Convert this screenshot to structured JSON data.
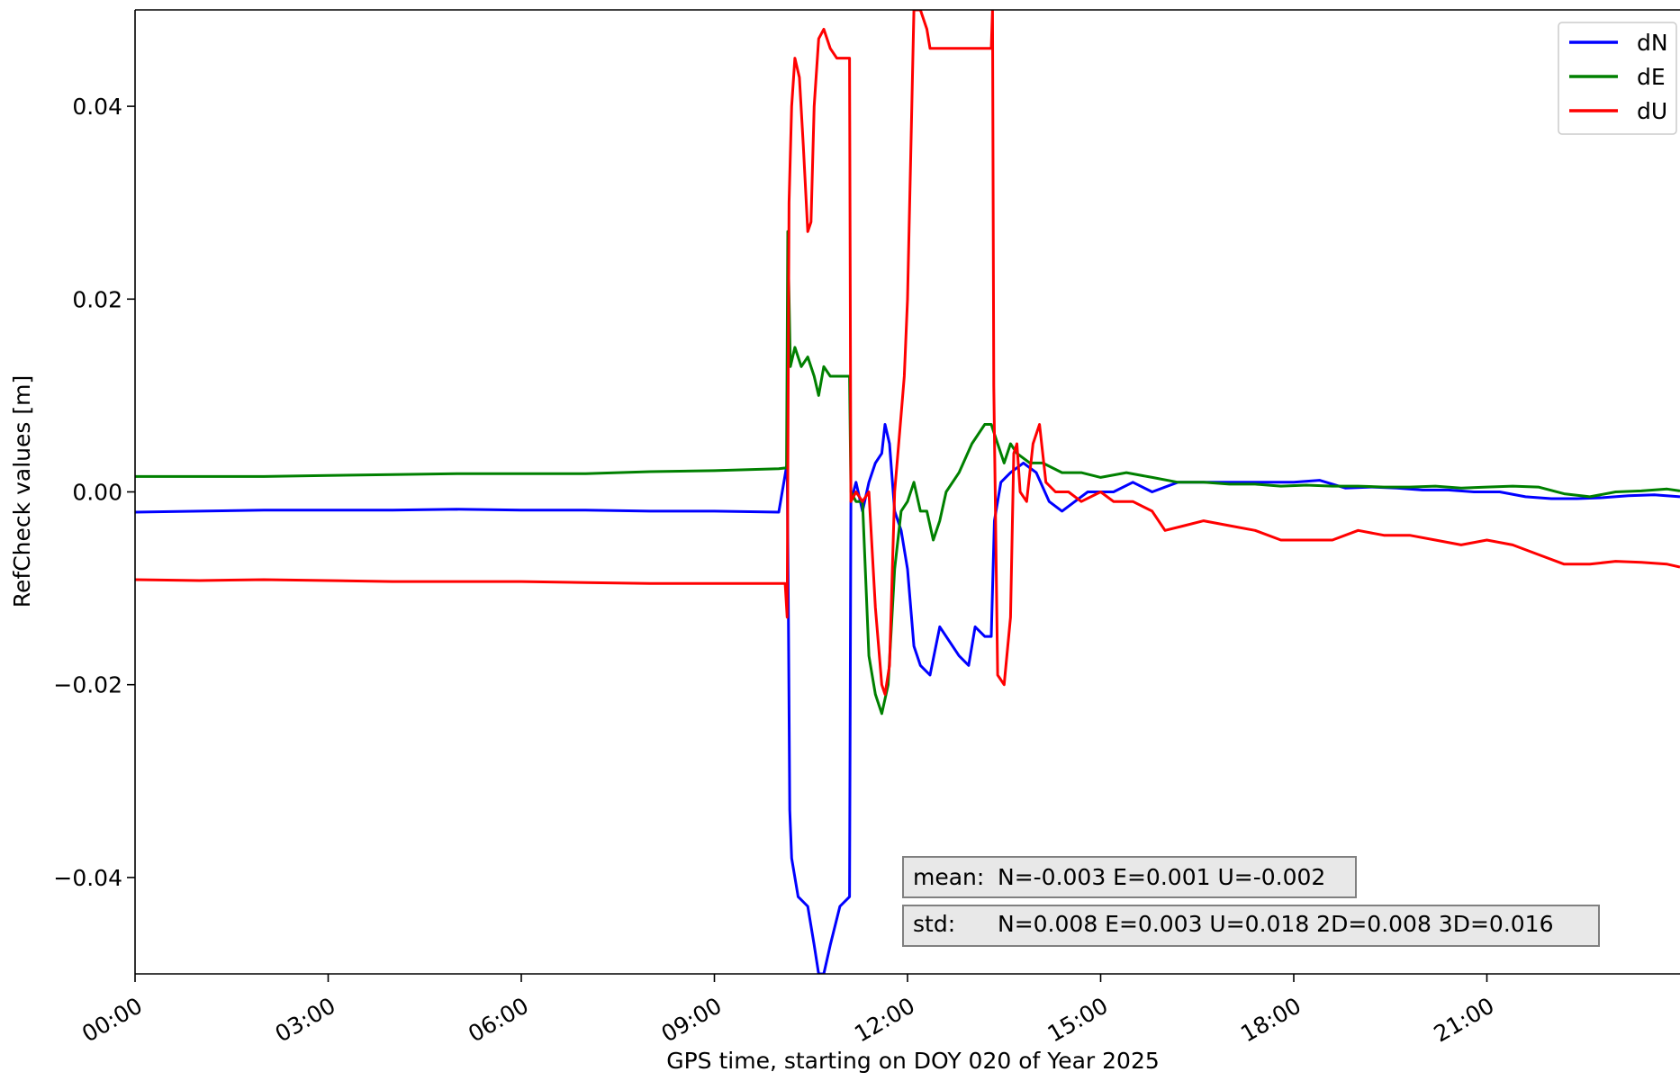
{
  "chart_data": {
    "type": "line",
    "xlabel": "GPS time, starting on DOY 020 of Year 2025",
    "ylabel": "RefCheck values [m]",
    "xlim": [
      0,
      24
    ],
    "ylim": [
      -0.05,
      0.05
    ],
    "x_ticks": [
      {
        "value": 0,
        "label": "00:00"
      },
      {
        "value": 3,
        "label": "03:00"
      },
      {
        "value": 6,
        "label": "06:00"
      },
      {
        "value": 9,
        "label": "09:00"
      },
      {
        "value": 12,
        "label": "12:00"
      },
      {
        "value": 15,
        "label": "15:00"
      },
      {
        "value": 18,
        "label": "18:00"
      },
      {
        "value": 21,
        "label": "21:00"
      }
    ],
    "y_ticks": [
      {
        "value": 0.04,
        "label": "0.04"
      },
      {
        "value": 0.02,
        "label": "0.02"
      },
      {
        "value": 0.0,
        "label": "0.00"
      },
      {
        "value": -0.02,
        "label": "−0.02"
      },
      {
        "value": -0.04,
        "label": "−0.04"
      }
    ],
    "legend_position": "top-right",
    "grid": false,
    "series": [
      {
        "name": "dN",
        "color": "#0000ff",
        "points": [
          [
            0,
            -0.0021
          ],
          [
            1,
            -0.002
          ],
          [
            2,
            -0.0019
          ],
          [
            3,
            -0.0019
          ],
          [
            4,
            -0.0019
          ],
          [
            5,
            -0.0018
          ],
          [
            6,
            -0.0019
          ],
          [
            7,
            -0.0019
          ],
          [
            8,
            -0.002
          ],
          [
            9,
            -0.002
          ],
          [
            10,
            -0.0021
          ],
          [
            10.13,
            0.003
          ],
          [
            10.15,
            -0.013
          ],
          [
            10.17,
            -0.033
          ],
          [
            10.2,
            -0.038
          ],
          [
            10.3,
            -0.042
          ],
          [
            10.45,
            -0.043
          ],
          [
            10.55,
            -0.047
          ],
          [
            10.62,
            -0.05
          ],
          [
            10.7,
            -0.05
          ],
          [
            10.8,
            -0.047
          ],
          [
            10.95,
            -0.043
          ],
          [
            11.1,
            -0.042
          ],
          [
            11.12,
            -0.001
          ],
          [
            11.2,
            0.001
          ],
          [
            11.3,
            -0.002
          ],
          [
            11.4,
            0.001
          ],
          [
            11.5,
            0.003
          ],
          [
            11.6,
            0.004
          ],
          [
            11.65,
            0.007
          ],
          [
            11.72,
            0.005
          ],
          [
            11.8,
            -0.002
          ],
          [
            11.9,
            -0.004
          ],
          [
            12.0,
            -0.008
          ],
          [
            12.1,
            -0.016
          ],
          [
            12.2,
            -0.018
          ],
          [
            12.35,
            -0.019
          ],
          [
            12.5,
            -0.014
          ],
          [
            12.6,
            -0.015
          ],
          [
            12.8,
            -0.017
          ],
          [
            12.95,
            -0.018
          ],
          [
            13.05,
            -0.014
          ],
          [
            13.2,
            -0.015
          ],
          [
            13.3,
            -0.015
          ],
          [
            13.35,
            -0.003
          ],
          [
            13.45,
            0.001
          ],
          [
            13.6,
            0.002
          ],
          [
            13.8,
            0.003
          ],
          [
            14.0,
            0.002
          ],
          [
            14.2,
            -0.001
          ],
          [
            14.4,
            -0.002
          ],
          [
            14.6,
            -0.001
          ],
          [
            14.8,
            0.0
          ],
          [
            15.0,
            0.0
          ],
          [
            15.2,
            0.0
          ],
          [
            15.5,
            0.001
          ],
          [
            15.8,
            0.0
          ],
          [
            16.2,
            0.001
          ],
          [
            16.6,
            0.001
          ],
          [
            17.0,
            0.001
          ],
          [
            17.5,
            0.001
          ],
          [
            18.0,
            0.001
          ],
          [
            18.4,
            0.0012
          ],
          [
            18.8,
            0.0004
          ],
          [
            19.2,
            0.0005
          ],
          [
            19.6,
            0.0004
          ],
          [
            20.0,
            0.0002
          ],
          [
            20.4,
            0.0002
          ],
          [
            20.8,
            0.0
          ],
          [
            21.2,
            0.0
          ],
          [
            21.6,
            -0.0005
          ],
          [
            22.0,
            -0.0007
          ],
          [
            22.4,
            -0.0007
          ],
          [
            22.8,
            -0.0006
          ],
          [
            23.2,
            -0.0004
          ],
          [
            23.6,
            -0.0003
          ],
          [
            24.0,
            -0.0005
          ]
        ]
      },
      {
        "name": "dE",
        "color": "#008000",
        "points": [
          [
            0,
            0.0016
          ],
          [
            1,
            0.0016
          ],
          [
            2,
            0.0016
          ],
          [
            3,
            0.0017
          ],
          [
            4,
            0.0018
          ],
          [
            5,
            0.0019
          ],
          [
            6,
            0.0019
          ],
          [
            7,
            0.0019
          ],
          [
            8,
            0.0021
          ],
          [
            9,
            0.0022
          ],
          [
            10,
            0.0024
          ],
          [
            10.12,
            0.0025
          ],
          [
            10.14,
            0.027
          ],
          [
            10.18,
            0.013
          ],
          [
            10.25,
            0.015
          ],
          [
            10.35,
            0.013
          ],
          [
            10.45,
            0.014
          ],
          [
            10.55,
            0.012
          ],
          [
            10.62,
            0.01
          ],
          [
            10.7,
            0.013
          ],
          [
            10.8,
            0.012
          ],
          [
            11.1,
            0.012
          ],
          [
            11.12,
            0.0
          ],
          [
            11.2,
            -0.001
          ],
          [
            11.3,
            -0.001
          ],
          [
            11.4,
            -0.017
          ],
          [
            11.5,
            -0.021
          ],
          [
            11.6,
            -0.023
          ],
          [
            11.7,
            -0.02
          ],
          [
            11.8,
            -0.008
          ],
          [
            11.9,
            -0.002
          ],
          [
            12.0,
            -0.001
          ],
          [
            12.1,
            0.001
          ],
          [
            12.2,
            -0.002
          ],
          [
            12.3,
            -0.002
          ],
          [
            12.4,
            -0.005
          ],
          [
            12.5,
            -0.003
          ],
          [
            12.6,
            0.0
          ],
          [
            12.8,
            0.002
          ],
          [
            13.0,
            0.005
          ],
          [
            13.2,
            0.007
          ],
          [
            13.3,
            0.007
          ],
          [
            13.4,
            0.005
          ],
          [
            13.5,
            0.003
          ],
          [
            13.6,
            0.005
          ],
          [
            13.7,
            0.004
          ],
          [
            13.9,
            0.003
          ],
          [
            14.1,
            0.003
          ],
          [
            14.4,
            0.002
          ],
          [
            14.7,
            0.002
          ],
          [
            15.0,
            0.0015
          ],
          [
            15.4,
            0.002
          ],
          [
            15.8,
            0.0015
          ],
          [
            16.2,
            0.001
          ],
          [
            16.6,
            0.001
          ],
          [
            17.0,
            0.0008
          ],
          [
            17.4,
            0.0008
          ],
          [
            17.8,
            0.0006
          ],
          [
            18.2,
            0.0007
          ],
          [
            18.6,
            0.0006
          ],
          [
            19.0,
            0.0006
          ],
          [
            19.4,
            0.0005
          ],
          [
            19.8,
            0.0005
          ],
          [
            20.2,
            0.0006
          ],
          [
            20.6,
            0.0004
          ],
          [
            21.0,
            0.0005
          ],
          [
            21.4,
            0.0006
          ],
          [
            21.8,
            0.0005
          ],
          [
            22.2,
            -0.0002
          ],
          [
            22.6,
            -0.0005
          ],
          [
            23.0,
            0.0
          ],
          [
            23.4,
            0.0001
          ],
          [
            23.8,
            0.0003
          ],
          [
            24.0,
            0.0001
          ]
        ]
      },
      {
        "name": "dU",
        "color": "#ff0000",
        "points": [
          [
            0,
            -0.0091
          ],
          [
            1,
            -0.0092
          ],
          [
            2,
            -0.0091
          ],
          [
            3,
            -0.0092
          ],
          [
            4,
            -0.0093
          ],
          [
            5,
            -0.0093
          ],
          [
            6,
            -0.0093
          ],
          [
            7,
            -0.0094
          ],
          [
            8,
            -0.0095
          ],
          [
            9,
            -0.0095
          ],
          [
            10,
            -0.0095
          ],
          [
            10.1,
            -0.0095
          ],
          [
            10.13,
            -0.013
          ],
          [
            10.16,
            0.03
          ],
          [
            10.2,
            0.04
          ],
          [
            10.25,
            0.045
          ],
          [
            10.32,
            0.043
          ],
          [
            10.38,
            0.036
          ],
          [
            10.45,
            0.027
          ],
          [
            10.5,
            0.028
          ],
          [
            10.55,
            0.04
          ],
          [
            10.62,
            0.047
          ],
          [
            10.7,
            0.048
          ],
          [
            10.8,
            0.046
          ],
          [
            10.9,
            0.045
          ],
          [
            11.0,
            0.045
          ],
          [
            11.1,
            0.045
          ],
          [
            11.12,
            -0.001
          ],
          [
            11.2,
            0.0
          ],
          [
            11.3,
            -0.001
          ],
          [
            11.4,
            0.0
          ],
          [
            11.5,
            -0.012
          ],
          [
            11.6,
            -0.02
          ],
          [
            11.65,
            -0.021
          ],
          [
            11.72,
            -0.018
          ],
          [
            11.8,
            0.0
          ],
          [
            11.9,
            0.008
          ],
          [
            11.95,
            0.012
          ],
          [
            12.0,
            0.02
          ],
          [
            12.05,
            0.035
          ],
          [
            12.1,
            0.05
          ],
          [
            12.2,
            0.05
          ],
          [
            12.3,
            0.048
          ],
          [
            12.35,
            0.046
          ],
          [
            13.3,
            0.046
          ],
          [
            13.32,
            0.05
          ],
          [
            13.34,
            0.011
          ],
          [
            13.4,
            -0.019
          ],
          [
            13.5,
            -0.02
          ],
          [
            13.6,
            -0.013
          ],
          [
            13.65,
            0.004
          ],
          [
            13.7,
            0.005
          ],
          [
            13.75,
            0.0
          ],
          [
            13.85,
            -0.001
          ],
          [
            13.95,
            0.005
          ],
          [
            14.05,
            0.007
          ],
          [
            14.15,
            0.001
          ],
          [
            14.3,
            0.0
          ],
          [
            14.5,
            0.0
          ],
          [
            14.7,
            -0.001
          ],
          [
            15.0,
            0.0
          ],
          [
            15.2,
            -0.001
          ],
          [
            15.5,
            -0.001
          ],
          [
            15.8,
            -0.002
          ],
          [
            16.0,
            -0.004
          ],
          [
            16.3,
            -0.0035
          ],
          [
            16.6,
            -0.003
          ],
          [
            17.0,
            -0.0035
          ],
          [
            17.4,
            -0.004
          ],
          [
            17.8,
            -0.005
          ],
          [
            18.2,
            -0.005
          ],
          [
            18.6,
            -0.005
          ],
          [
            19.0,
            -0.004
          ],
          [
            19.4,
            -0.0045
          ],
          [
            19.8,
            -0.0045
          ],
          [
            20.2,
            -0.005
          ],
          [
            20.6,
            -0.0055
          ],
          [
            21.0,
            -0.005
          ],
          [
            21.4,
            -0.0055
          ],
          [
            21.8,
            -0.0065
          ],
          [
            22.2,
            -0.0075
          ],
          [
            22.6,
            -0.0075
          ],
          [
            23.0,
            -0.0072
          ],
          [
            23.4,
            -0.0073
          ],
          [
            23.8,
            -0.0075
          ],
          [
            24.0,
            -0.0078
          ]
        ]
      }
    ],
    "stats": [
      {
        "label": "mean:",
        "text": "N=-0.003 E=0.001 U=-0.002"
      },
      {
        "label": "std:",
        "text": "N=0.008 E=0.003 U=0.018 2D=0.008 3D=0.016"
      }
    ]
  }
}
